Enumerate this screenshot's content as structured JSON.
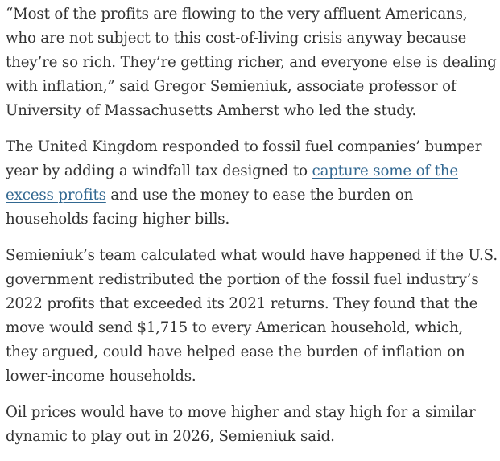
{
  "article": {
    "paragraphs": [
      {
        "text": "“Most of the profits are flowing to the very affluent Americans, who are not subject to this cost-of-living crisis anyway because they’re so rich. They’re getting richer, and everyone else is dealing with inflation,” said Gregor Semieniuk, associate professor of University of Massachusetts Amherst who led the study."
      },
      {
        "before_link": "The United Kingdom responded to fossil fuel companies’ bumper year by adding a windfall tax designed to ",
        "link_text": "capture some of the excess profits",
        "after_link": " and use the money to ease the burden on households facing higher bills."
      },
      {
        "text": "Semieniuk’s team calculated what would have happened if the U.S. government redistributed the portion of the fossil fuel industry’s 2022 profits that exceeded its 2021 returns. They found that the move would send $1,715 to every American household, which, they argued, could have helped ease the burden of inflation on lower-income households."
      },
      {
        "text": "Oil prices would have to move higher and stay high for a similar dynamic to play out in 2026, Semieniuk said."
      }
    ],
    "colors": {
      "text": "#333333",
      "link": "#326891",
      "background": "#ffffff"
    }
  }
}
